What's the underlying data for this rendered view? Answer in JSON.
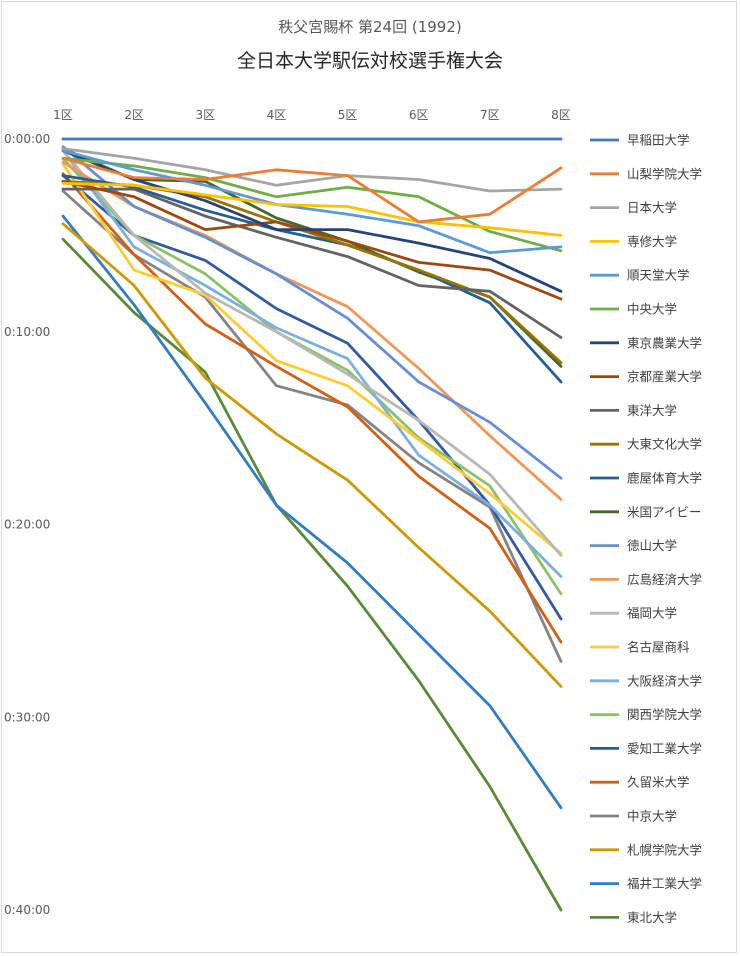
{
  "chart_data": {
    "type": "line",
    "subtitle": "秩父宮賜杯 第24回 (1992)",
    "title": "全日本大学駅伝対校選手権大会",
    "categories": [
      "1区",
      "2区",
      "3区",
      "4区",
      "5区",
      "6区",
      "7区",
      "8区"
    ],
    "y_ticks": [
      "0:00:00",
      "0:10:00",
      "0:20:00",
      "0:30:00",
      "0:40:00"
    ],
    "y_unit": "minutes behind leader",
    "ylim": [
      0,
      40
    ],
    "y_inverted": true,
    "grid": false,
    "legend_position": "right",
    "series": [
      {
        "name": "早稲田大学",
        "color": "#4472c4",
        "values": [
          0,
          0,
          0,
          0,
          0,
          0,
          0,
          0
        ]
      },
      {
        "name": "山梨学院大学",
        "color": "#ed7d31",
        "values": [
          1.0,
          2.0,
          2.1,
          1.6,
          1.9,
          4.3,
          3.9,
          1.5
        ]
      },
      {
        "name": "日本大学",
        "color": "#a5a5a5",
        "values": [
          0.5,
          1.0,
          1.6,
          2.4,
          1.9,
          2.1,
          2.7,
          2.6
        ]
      },
      {
        "name": "専修大学",
        "color": "#ffc000",
        "values": [
          2.3,
          2.4,
          2.9,
          3.4,
          3.5,
          4.3,
          4.6,
          5.0
        ]
      },
      {
        "name": "順天堂大学",
        "color": "#5b9bd5",
        "values": [
          0.6,
          1.6,
          2.4,
          3.4,
          3.9,
          4.5,
          5.9,
          5.6
        ]
      },
      {
        "name": "中央大学",
        "color": "#70ad47",
        "values": [
          1.0,
          1.4,
          2.0,
          3.0,
          2.5,
          3.0,
          4.8,
          5.8
        ]
      },
      {
        "name": "東京農業大学",
        "color": "#264478",
        "values": [
          0.6,
          2.1,
          3.2,
          4.7,
          4.7,
          5.4,
          6.2,
          7.9
        ]
      },
      {
        "name": "京都産業大学",
        "color": "#9e480e",
        "values": [
          2.2,
          3.0,
          4.7,
          4.3,
          5.3,
          6.4,
          6.8,
          8.3
        ]
      },
      {
        "name": "東洋大学",
        "color": "#636363",
        "values": [
          2.6,
          2.6,
          4.0,
          5.1,
          6.1,
          7.6,
          7.9,
          10.3
        ]
      },
      {
        "name": "大東文化大学",
        "color": "#997300",
        "values": [
          2.2,
          2.4,
          3.0,
          4.3,
          5.5,
          6.8,
          8.2,
          11.6
        ]
      },
      {
        "name": "鹿屋体育大学",
        "color": "#255e91",
        "values": [
          1.9,
          2.5,
          3.7,
          4.7,
          5.5,
          6.8,
          8.5,
          12.6
        ]
      },
      {
        "name": "米国アイビー",
        "color": "#43682b",
        "values": [
          0.5,
          2.1,
          2.2,
          4.1,
          5.3,
          6.9,
          8.2,
          11.8
        ]
      },
      {
        "name": "徳山大学",
        "color": "#698ed0",
        "values": [
          0.4,
          3.5,
          5.1,
          7.0,
          9.3,
          12.6,
          14.7,
          17.6
        ]
      },
      {
        "name": "広島経済大学",
        "color": "#f1975a",
        "values": [
          1.2,
          3.5,
          5.0,
          7.0,
          8.7,
          11.9,
          15.4,
          18.7
        ]
      },
      {
        "name": "福岡大学",
        "color": "#b7b7b7",
        "values": [
          0.6,
          5.0,
          8.0,
          10.0,
          12.2,
          14.6,
          17.4,
          21.6
        ]
      },
      {
        "name": "名古屋商科",
        "color": "#ffcd33",
        "values": [
          1.3,
          6.8,
          8.1,
          11.5,
          12.8,
          15.6,
          18.4,
          21.5
        ]
      },
      {
        "name": "大阪経済大学",
        "color": "#7cafdd",
        "values": [
          0.6,
          5.6,
          7.6,
          9.8,
          11.4,
          16.4,
          19.0,
          22.7
        ]
      },
      {
        "name": "関西学院大学",
        "color": "#8cc168",
        "values": [
          1.0,
          5.0,
          7.0,
          10.0,
          12.0,
          15.5,
          18.0,
          23.6
        ]
      },
      {
        "name": "愛知工業大学",
        "color": "#335aa1",
        "values": [
          1.9,
          5.0,
          6.3,
          8.8,
          10.6,
          14.6,
          19.0,
          24.9
        ]
      },
      {
        "name": "久留米大学",
        "color": "#d26012",
        "values": [
          1.8,
          6.0,
          9.6,
          11.8,
          13.9,
          17.5,
          20.2,
          26.1
        ]
      },
      {
        "name": "中京大学",
        "color": "#848484",
        "values": [
          2.7,
          6.0,
          8.2,
          12.8,
          13.8,
          16.8,
          19.1,
          27.1
        ]
      },
      {
        "name": "札幌学院大学",
        "color": "#cc9a00",
        "values": [
          4.4,
          7.6,
          12.4,
          15.3,
          17.7,
          21.2,
          24.5,
          28.4
        ]
      },
      {
        "name": "福井工業大学",
        "color": "#327dc2",
        "values": [
          4.0,
          8.6,
          13.7,
          19.0,
          22.0,
          25.7,
          29.4,
          34.7
        ]
      },
      {
        "name": "東北大学",
        "color": "#5a8a39",
        "values": [
          5.2,
          9.0,
          12.1,
          19.0,
          23.2,
          28.1,
          33.6,
          40.0
        ]
      }
    ]
  }
}
